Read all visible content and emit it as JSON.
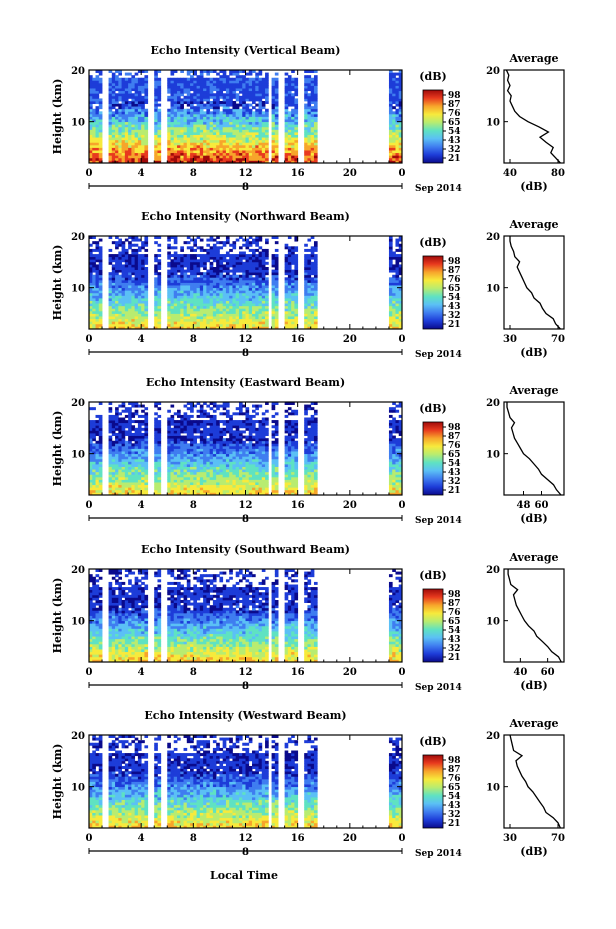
{
  "figure": {
    "xlabel": "Local Time",
    "date_label": "Sep 2014",
    "day_marker": "8",
    "colorbar_title": "(dB)",
    "avg_title": "Average",
    "avg_xlabel": "(dB)",
    "colormap": [
      "#0a0a8c",
      "#1d3cd8",
      "#3f7df0",
      "#5bc0f5",
      "#5fe2c2",
      "#b8ec70",
      "#f7ea3c",
      "#f7a52b",
      "#e83a1e",
      "#a00a0a"
    ]
  },
  "chart_data": [
    {
      "type": "heatmap",
      "title": "Echo Intensity (Vertical Beam)",
      "ylabel": "Height (km)",
      "xlim": [
        0,
        24
      ],
      "ylim": [
        2,
        20
      ],
      "x_ticks": [
        "0",
        "4",
        "8",
        "12",
        "16",
        "20",
        "0"
      ],
      "y_ticks": [
        "20",
        "10"
      ],
      "colorbar_ticks": [
        "98",
        "87",
        "76",
        "65",
        "54",
        "43",
        "32",
        "21"
      ],
      "data_gaps_hours": [
        [
          1.0,
          1.6
        ],
        [
          4.6,
          5.0
        ],
        [
          5.5,
          5.9
        ],
        [
          13.8,
          14.1
        ],
        [
          14.6,
          15.0
        ],
        [
          16.0,
          16.4
        ],
        [
          17.6,
          23.0
        ]
      ],
      "average_profile": {
        "xlim": [
          35,
          85
        ],
        "x_ticks": [
          "40",
          "80"
        ],
        "y_ticks": [
          "20",
          "10"
        ],
        "height_km": [
          2,
          3,
          4,
          5,
          6,
          7,
          8,
          9,
          10,
          11,
          12,
          13,
          14,
          15,
          16,
          17,
          18,
          19,
          20
        ],
        "db": [
          82,
          78,
          74,
          76,
          70,
          65,
          72,
          64,
          55,
          48,
          44,
          42,
          40,
          41,
          38,
          40,
          38,
          39,
          37
        ]
      }
    },
    {
      "type": "heatmap",
      "title": "Echo Intensity (Northward Beam)",
      "ylabel": "Height (km)",
      "xlim": [
        0,
        24
      ],
      "ylim": [
        2,
        20
      ],
      "x_ticks": [
        "0",
        "4",
        "8",
        "12",
        "16",
        "20",
        "0"
      ],
      "y_ticks": [
        "20",
        "10"
      ],
      "colorbar_ticks": [
        "98",
        "87",
        "76",
        "65",
        "54",
        "43",
        "32",
        "21"
      ],
      "data_gaps_hours": [
        [
          1.0,
          1.6
        ],
        [
          4.6,
          5.0
        ],
        [
          5.5,
          5.9
        ],
        [
          13.8,
          14.1
        ],
        [
          14.6,
          15.0
        ],
        [
          16.0,
          16.4
        ],
        [
          17.6,
          23.0
        ]
      ],
      "average_profile": {
        "xlim": [
          25,
          75
        ],
        "x_ticks": [
          "30",
          "70"
        ],
        "y_ticks": [
          "20",
          "10"
        ],
        "height_km": [
          2,
          3,
          4,
          5,
          6,
          7,
          8,
          9,
          10,
          11,
          12,
          13,
          14,
          15,
          16,
          17,
          18,
          19,
          20
        ],
        "db": [
          72,
          68,
          66,
          60,
          57,
          55,
          50,
          48,
          44,
          42,
          40,
          38,
          36,
          38,
          34,
          33,
          31,
          30,
          30
        ]
      }
    },
    {
      "type": "heatmap",
      "title": "Echo Intensity (Eastward Beam)",
      "ylabel": "Height (km)",
      "xlim": [
        0,
        24
      ],
      "ylim": [
        2,
        20
      ],
      "x_ticks": [
        "0",
        "4",
        "8",
        "12",
        "16",
        "20",
        "0"
      ],
      "y_ticks": [
        "20",
        "10"
      ],
      "colorbar_ticks": [
        "98",
        "87",
        "76",
        "65",
        "54",
        "43",
        "32",
        "21"
      ],
      "data_gaps_hours": [
        [
          1.0,
          1.6
        ],
        [
          4.6,
          5.0
        ],
        [
          5.5,
          5.9
        ],
        [
          13.8,
          14.1
        ],
        [
          14.6,
          15.0
        ],
        [
          16.0,
          16.4
        ],
        [
          17.6,
          23.0
        ]
      ],
      "average_profile": {
        "xlim": [
          35,
          75
        ],
        "x_ticks": [
          "48",
          "60"
        ],
        "y_ticks": [
          "20",
          "10"
        ],
        "height_km": [
          2,
          3,
          4,
          5,
          6,
          7,
          8,
          9,
          10,
          11,
          12,
          13,
          14,
          15,
          16,
          17,
          18,
          19,
          20
        ],
        "db": [
          73,
          70,
          68,
          64,
          60,
          58,
          55,
          52,
          48,
          46,
          44,
          42,
          41,
          40,
          42,
          39,
          38,
          37,
          37
        ]
      }
    },
    {
      "type": "heatmap",
      "title": "Echo Intensity (Southward Beam)",
      "ylabel": "Height (km)",
      "xlim": [
        0,
        24
      ],
      "ylim": [
        2,
        20
      ],
      "x_ticks": [
        "0",
        "4",
        "8",
        "12",
        "16",
        "20",
        "0"
      ],
      "y_ticks": [
        "20",
        "10"
      ],
      "colorbar_ticks": [
        "98",
        "87",
        "76",
        "65",
        "54",
        "43",
        "32",
        "21"
      ],
      "data_gaps_hours": [
        [
          1.0,
          1.6
        ],
        [
          4.6,
          5.0
        ],
        [
          5.5,
          5.9
        ],
        [
          13.8,
          14.1
        ],
        [
          14.6,
          15.0
        ],
        [
          16.0,
          16.4
        ],
        [
          17.6,
          23.0
        ]
      ],
      "average_profile": {
        "xlim": [
          28,
          72
        ],
        "x_ticks": [
          "40",
          "60"
        ],
        "y_ticks": [
          "20",
          "10"
        ],
        "height_km": [
          2,
          3,
          4,
          5,
          6,
          7,
          8,
          9,
          10,
          11,
          12,
          13,
          14,
          15,
          16,
          17,
          18,
          19,
          20
        ],
        "db": [
          70,
          68,
          63,
          60,
          56,
          52,
          50,
          46,
          43,
          41,
          39,
          37,
          36,
          35,
          38,
          33,
          32,
          31,
          31
        ]
      }
    },
    {
      "type": "heatmap",
      "title": "Echo Intensity (Westward Beam)",
      "ylabel": "Height (km)",
      "xlim": [
        0,
        24
      ],
      "ylim": [
        2,
        20
      ],
      "x_ticks": [
        "0",
        "4",
        "8",
        "12",
        "16",
        "20",
        "0"
      ],
      "y_ticks": [
        "20",
        "10"
      ],
      "colorbar_ticks": [
        "98",
        "87",
        "76",
        "65",
        "54",
        "43",
        "32",
        "21"
      ],
      "data_gaps_hours": [
        [
          1.0,
          1.6
        ],
        [
          4.6,
          5.0
        ],
        [
          5.5,
          5.9
        ],
        [
          13.8,
          14.1
        ],
        [
          14.6,
          15.0
        ],
        [
          16.0,
          16.4
        ],
        [
          17.6,
          23.0
        ]
      ],
      "average_profile": {
        "xlim": [
          25,
          75
        ],
        "x_ticks": [
          "30",
          "70"
        ],
        "y_ticks": [
          "20",
          "10"
        ],
        "height_km": [
          2,
          3,
          4,
          5,
          6,
          7,
          8,
          9,
          10,
          11,
          12,
          13,
          14,
          15,
          16,
          17,
          18,
          19,
          20
        ],
        "db": [
          72,
          70,
          66,
          60,
          58,
          55,
          52,
          49,
          45,
          43,
          40,
          38,
          36,
          35,
          40,
          33,
          32,
          31,
          30
        ]
      }
    }
  ]
}
